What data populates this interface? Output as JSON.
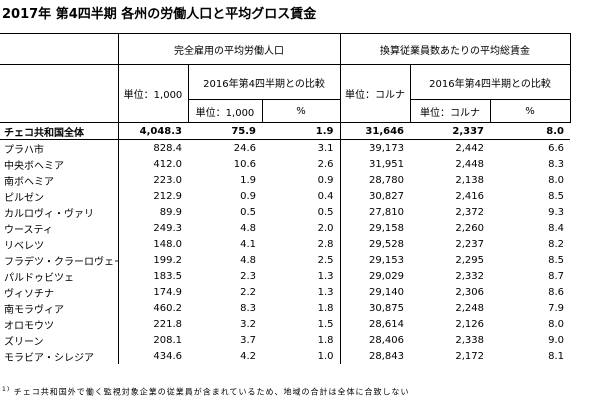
{
  "header": {
    "title": "2017年 第4四半期 各州の労働人口と平均グロス賃金"
  },
  "table": {
    "group_headers": [
      "完全雇用の平均労働人口",
      "換算従業員数あたりの平均総賃金"
    ],
    "sub_headers": [
      "単位：1,000",
      "2016年第4四半期との比較",
      "単位：コルナ",
      "2016年第4四半期との比較"
    ],
    "unit_headers": [
      "単位：1,000",
      "%",
      "単位：コルナ",
      "%"
    ],
    "rows": [
      [
        "チェコ共和国全体",
        "4,048.3",
        "75.9",
        "1.9",
        "31,646",
        "2,337",
        "8.0"
      ],
      [
        "プラハ市",
        "828.4",
        "24.6",
        "3.1",
        "39,173",
        "2,442",
        "6.6"
      ],
      [
        "中央ボヘミア",
        "412.0",
        "10.6",
        "2.6",
        "31,951",
        "2,448",
        "8.3"
      ],
      [
        "南ボヘミア",
        "223.0",
        "1.9",
        "0.9",
        "28,780",
        "2,138",
        "8.0"
      ],
      [
        "ピルゼン",
        "212.9",
        "0.9",
        "0.4",
        "30,827",
        "2,416",
        "8.5"
      ],
      [
        "カルロヴィ・ヴァリ",
        "89.9",
        "0.5",
        "0.5",
        "27,810",
        "2,372",
        "9.3"
      ],
      [
        "ウースティ",
        "249.3",
        "4.8",
        "2.0",
        "29,158",
        "2,260",
        "8.4"
      ],
      [
        "リベレツ",
        "148.0",
        "4.1",
        "2.8",
        "29,528",
        "2,237",
        "8.2"
      ],
      [
        "フラデツ・クラーロヴェー",
        "199.2",
        "4.8",
        "2.5",
        "29,153",
        "2,295",
        "8.5"
      ],
      [
        "パルドゥビツェ",
        "183.5",
        "2.3",
        "1.3",
        "29,029",
        "2,332",
        "8.7"
      ],
      [
        "ヴィソチナ",
        "174.9",
        "2.2",
        "1.3",
        "29,140",
        "2,306",
        "8.6"
      ],
      [
        "南モラヴィア",
        "460.2",
        "8.3",
        "1.8",
        "30,875",
        "2,248",
        "7.9"
      ],
      [
        "オロモウツ",
        "221.8",
        "3.2",
        "1.5",
        "28,614",
        "2,126",
        "8.0"
      ],
      [
        "ズリーン",
        "208.1",
        "3.7",
        "1.8",
        "28,406",
        "2,338",
        "9.0"
      ],
      [
        "モラビア・シレジア",
        "434.6",
        "4.2",
        "1.0",
        "28,843",
        "2,172",
        "8.1"
      ]
    ]
  },
  "footnote": {
    "marker": "1)",
    "text": "チェコ共和国外で働く監視対象企業の従業員が含まれているため、地域の合計は全体に合致しない"
  }
}
